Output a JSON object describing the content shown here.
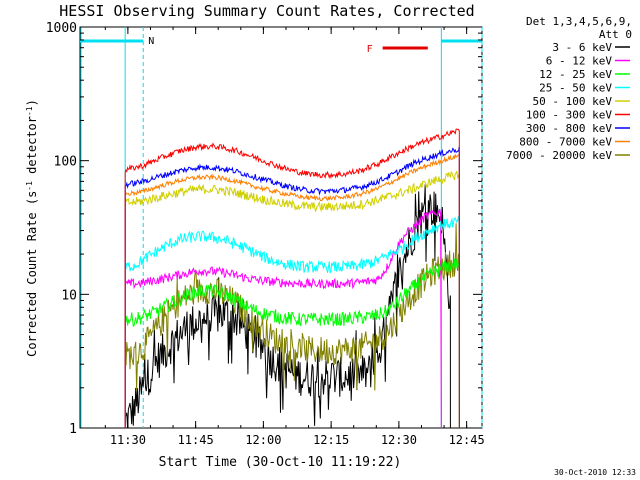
{
  "chart_data": {
    "type": "line",
    "title": "HESSI Observing Summary Count Rates, Corrected",
    "xlabel": "Start Time (30-Oct-10 11:19:22)",
    "ylabel_parts": [
      "Corrected Count Rate (s",
      "-1",
      " detector",
      "-1",
      ")"
    ],
    "x_unit": "minutes after 11:19:22 UT, 30-Oct-2010",
    "xlim": [
      0,
      89
    ],
    "ylim": [
      1,
      1000
    ],
    "yscale": "log",
    "x_ticks": [
      {
        "label": "11:30",
        "value": 10.6
      },
      {
        "label": "11:45",
        "value": 25.6
      },
      {
        "label": "12:00",
        "value": 40.6
      },
      {
        "label": "12:15",
        "value": 55.6
      },
      {
        "label": "12:30",
        "value": 70.6
      },
      {
        "label": "12:45",
        "value": 85.6
      }
    ],
    "y_ticks": [
      {
        "label": "1",
        "value": 1
      },
      {
        "label": "10",
        "value": 10
      },
      {
        "label": "100",
        "value": 100
      },
      {
        "label": "1000",
        "value": 1000
      }
    ],
    "legend": {
      "position": "right",
      "header": [
        "Det 1,3,4,5,6,9,",
        "Att 0"
      ],
      "entries": [
        "3 - 6 keV",
        "6 - 12 keV",
        "12 - 25 keV",
        "25 - 50 keV",
        "50 - 100 keV",
        "100 - 300 keV",
        "300 - 800 keV",
        "800 - 7000 keV",
        "7000 - 20000 keV"
      ]
    },
    "timestamp": "30-Oct-2010 12:33",
    "annotations": {
      "night_label": "N",
      "flare_label": "F",
      "night_bars": [
        [
          0,
          14
        ],
        [
          80,
          89
        ]
      ],
      "flare_bar": [
        67,
        77
      ]
    },
    "series": [
      {
        "name": "3 - 6 keV",
        "color": "#000000",
        "noise": 0.35,
        "spikes": 0.4,
        "x": [
          10,
          12,
          14,
          16,
          18,
          20,
          22,
          24,
          26,
          28,
          30,
          32,
          34,
          36,
          38,
          40,
          42,
          44,
          46,
          48,
          50,
          52,
          54,
          56,
          58,
          60,
          62,
          64,
          66,
          68,
          70,
          72,
          74,
          76,
          78,
          80,
          82
        ],
        "y": [
          1.1,
          1.4,
          2.0,
          2.8,
          3.5,
          4.2,
          5.0,
          5.8,
          6.3,
          6.8,
          7.0,
          7.2,
          6.8,
          5.8,
          4.8,
          4.0,
          3.4,
          3.0,
          2.7,
          2.5,
          2.4,
          2.4,
          2.4,
          2.4,
          2.4,
          2.5,
          2.5,
          2.6,
          3.5,
          6.0,
          12,
          20,
          30,
          40,
          45,
          40,
          8.0
        ]
      },
      {
        "name": "6 - 12 keV",
        "color": "#ff00ff",
        "noise": 0.08,
        "spikes": 0,
        "x": [
          10,
          12,
          14,
          16,
          18,
          20,
          22,
          24,
          26,
          28,
          30,
          32,
          34,
          36,
          38,
          40,
          42,
          44,
          46,
          48,
          50,
          52,
          54,
          56,
          58,
          60,
          62,
          64,
          66,
          68,
          70,
          72,
          74,
          76,
          78,
          80
        ],
        "y": [
          12,
          12,
          12.2,
          12.6,
          13,
          13.5,
          14,
          14.5,
          15,
          15,
          14.8,
          14.5,
          14,
          13.5,
          13,
          12.7,
          12.5,
          12.3,
          12.2,
          12.1,
          12,
          12,
          12,
          12,
          12,
          12.1,
          12.3,
          12.5,
          13,
          16,
          22,
          28,
          32,
          37,
          40,
          42
        ]
      },
      {
        "name": "12 - 25 keV",
        "color": "#00ff00",
        "noise": 0.12,
        "spikes": 0,
        "x": [
          10,
          12,
          14,
          16,
          18,
          20,
          22,
          24,
          26,
          28,
          30,
          32,
          34,
          36,
          38,
          40,
          42,
          44,
          46,
          48,
          50,
          52,
          54,
          56,
          58,
          60,
          62,
          64,
          66,
          68,
          70,
          72,
          74,
          76,
          78,
          80,
          82,
          84
        ],
        "y": [
          6.5,
          6.5,
          6.8,
          7.2,
          7.8,
          8.5,
          9.2,
          10,
          10.5,
          10.8,
          10.5,
          10,
          9.2,
          8.4,
          7.8,
          7.3,
          7,
          6.8,
          6.6,
          6.5,
          6.5,
          6.5,
          6.5,
          6.5,
          6.5,
          6.6,
          6.7,
          6.8,
          7,
          7.5,
          8.5,
          10,
          11.5,
          13,
          14.5,
          15.5,
          16.5,
          17
        ]
      },
      {
        "name": "25 - 50 keV",
        "color": "#00ffff",
        "noise": 0.1,
        "spikes": 0,
        "x": [
          10,
          12,
          14,
          16,
          18,
          20,
          22,
          24,
          26,
          28,
          30,
          32,
          34,
          36,
          38,
          40,
          42,
          44,
          46,
          48,
          50,
          52,
          54,
          56,
          58,
          60,
          62,
          64,
          66,
          68,
          70,
          72,
          74,
          76,
          78,
          80,
          82,
          84
        ],
        "y": [
          16,
          16.5,
          18,
          20,
          22,
          24,
          25.5,
          26.5,
          27,
          27,
          26.5,
          25.5,
          24,
          22.5,
          21,
          19.5,
          18.2,
          17.3,
          16.7,
          16.3,
          16,
          16,
          16,
          16,
          16,
          16.2,
          16.5,
          17,
          18,
          19.5,
          21,
          23,
          26,
          28.5,
          31,
          33,
          34,
          35
        ]
      },
      {
        "name": "50 - 100 keV",
        "color": "#d0d000",
        "noise": 0.08,
        "spikes": 0,
        "x": [
          10,
          14,
          18,
          22,
          26,
          30,
          34,
          38,
          42,
          46,
          50,
          54,
          58,
          62,
          66,
          70,
          74,
          78,
          82,
          84
        ],
        "y": [
          48,
          50,
          54,
          58,
          61,
          61,
          58,
          54,
          50,
          47,
          45.5,
          45,
          45.5,
          47,
          51,
          56,
          62,
          70,
          76,
          80
        ]
      },
      {
        "name": "100 - 300 keV",
        "color": "#ff0000",
        "noise": 0.05,
        "spikes": 0,
        "x": [
          10,
          14,
          18,
          22,
          26,
          30,
          34,
          38,
          42,
          46,
          50,
          54,
          58,
          62,
          66,
          70,
          74,
          78,
          82,
          84
        ],
        "y": [
          85,
          92,
          105,
          118,
          127,
          128,
          120,
          108,
          96,
          86,
          80,
          78,
          79,
          84,
          95,
          112,
          130,
          145,
          160,
          170
        ]
      },
      {
        "name": "300 - 800 keV",
        "color": "#0000ff",
        "noise": 0.05,
        "spikes": 0,
        "x": [
          10,
          14,
          18,
          22,
          26,
          30,
          34,
          38,
          42,
          46,
          50,
          54,
          58,
          62,
          66,
          70,
          74,
          78,
          82,
          84
        ],
        "y": [
          66,
          70,
          77,
          84,
          89,
          89,
          84,
          77,
          70,
          64,
          60,
          59,
          60,
          63,
          70,
          81,
          96,
          108,
          118,
          122
        ]
      },
      {
        "name": "800 - 7000 keV",
        "color": "#ff8000",
        "noise": 0.04,
        "spikes": 0,
        "x": [
          10,
          14,
          18,
          22,
          26,
          30,
          34,
          38,
          42,
          46,
          50,
          54,
          58,
          62,
          66,
          70,
          74,
          78,
          82,
          84
        ],
        "y": [
          56,
          59,
          65,
          71,
          75,
          75,
          71,
          65,
          60,
          56,
          53,
          52,
          53,
          56,
          62,
          72,
          84,
          95,
          104,
          110
        ]
      },
      {
        "name": "7000 - 20000 keV",
        "color": "#808000",
        "noise": 0.25,
        "spikes": 0.15,
        "x": [
          10,
          12,
          14,
          16,
          18,
          20,
          22,
          24,
          26,
          28,
          30,
          32,
          34,
          36,
          38,
          40,
          42,
          44,
          46,
          48,
          50,
          52,
          54,
          56,
          58,
          60,
          62,
          64,
          66,
          68,
          70,
          72,
          74,
          76,
          78,
          80,
          82,
          84
        ],
        "y": [
          3.5,
          3.5,
          4.0,
          5.0,
          6.2,
          7.5,
          8.8,
          9.8,
          10.5,
          10.8,
          10.5,
          9.8,
          8.8,
          7.6,
          6.5,
          5.6,
          4.9,
          4.4,
          4.1,
          3.9,
          3.8,
          3.8,
          3.8,
          3.8,
          3.8,
          3.9,
          4.0,
          4.2,
          4.6,
          5.2,
          6.5,
          8.5,
          10.5,
          12.5,
          14.5,
          16,
          17,
          18
        ]
      }
    ]
  }
}
